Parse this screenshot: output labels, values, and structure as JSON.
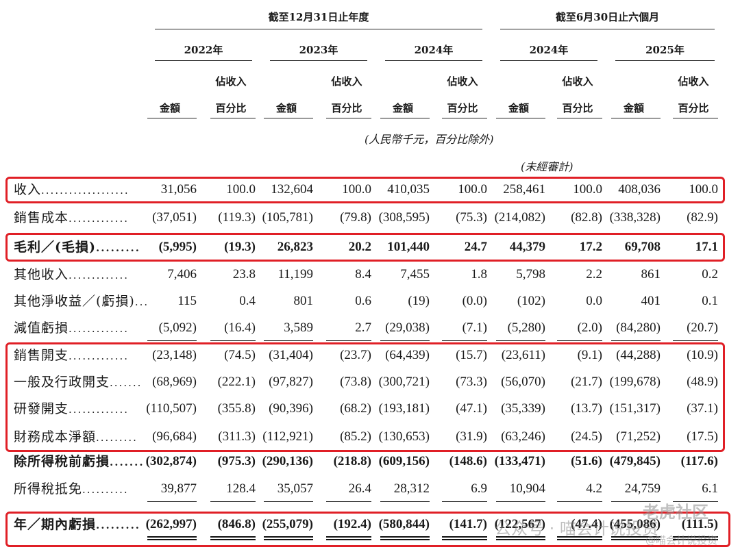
{
  "header": {
    "group1": "截至12月31日止年度",
    "group2": "截至6月30日止六個月",
    "years": [
      "2022年",
      "2023年",
      "2024年",
      "2024年",
      "2025年"
    ],
    "amount_label": "金額",
    "pct_label_1": "佔收入",
    "pct_label_2": "百分比",
    "unit_note": "(人民幣千元，百分比除外)",
    "unaudited": "(未經審計)"
  },
  "rows": [
    {
      "label": "收入",
      "leader": "...................",
      "bold": false,
      "values": [
        "31,056",
        "100.0",
        "132,604",
        "100.0",
        "410,035",
        "100.0",
        "258,461",
        "100.0",
        "408,036",
        "100.0"
      ]
    },
    {
      "label": "銷售成本",
      "leader": ".............",
      "bold": false,
      "values": [
        "(37,051)",
        "(119.3)",
        "(105,781)",
        "(79.8)",
        "(308,595)",
        "(75.3)",
        "(214,082)",
        "(82.8)",
        "(338,328)",
        "(82.9)"
      ]
    },
    {
      "label": "毛利／(毛損)",
      "leader": ".........",
      "bold": true,
      "values": [
        "(5,995)",
        "(19.3)",
        "26,823",
        "20.2",
        "101,440",
        "24.7",
        "44,379",
        "17.2",
        "69,708",
        "17.1"
      ]
    },
    {
      "label": "其他收入",
      "leader": ".............",
      "bold": false,
      "values": [
        "7,406",
        "23.8",
        "11,199",
        "8.4",
        "7,455",
        "1.8",
        "5,798",
        "2.2",
        "861",
        "0.2"
      ]
    },
    {
      "label": "其他淨收益／(虧損)",
      "leader": "...",
      "bold": false,
      "values": [
        "115",
        "0.4",
        "801",
        "0.6",
        "(19)",
        "(0.0)",
        "(102)",
        "0.0",
        "401",
        "0.1"
      ]
    },
    {
      "label": "減值虧損",
      "leader": ".............",
      "bold": false,
      "values": [
        "(5,092)",
        "(16.4)",
        "3,589",
        "2.7",
        "(29,038)",
        "(7.1)",
        "(5,280)",
        "(2.0)",
        "(84,280)",
        "(20.7)"
      ]
    },
    {
      "label": "銷售開支",
      "leader": ".............",
      "bold": false,
      "values": [
        "(23,148)",
        "(74.5)",
        "(31,404)",
        "(23.7)",
        "(64,439)",
        "(15.7)",
        "(23,611)",
        "(9.1)",
        "(44,288)",
        "(10.9)"
      ]
    },
    {
      "label": "一般及行政開支",
      "leader": ".......",
      "bold": false,
      "values": [
        "(68,969)",
        "(222.1)",
        "(97,827)",
        "(73.8)",
        "(300,721)",
        "(73.3)",
        "(56,070)",
        "(21.7)",
        "(199,678)",
        "(48.9)"
      ]
    },
    {
      "label": "研發開支",
      "leader": ".............",
      "bold": false,
      "values": [
        "(110,507)",
        "(355.8)",
        "(90,396)",
        "(68.2)",
        "(193,181)",
        "(47.1)",
        "(35,339)",
        "(13.7)",
        "(151,317)",
        "(37.1)"
      ]
    },
    {
      "label": "財務成本淨額",
      "leader": ".........",
      "bold": false,
      "values": [
        "(96,684)",
        "(311.3)",
        "(112,921)",
        "(85.2)",
        "(130,653)",
        "(31.9)",
        "(63,246)",
        "(24.5)",
        "(71,252)",
        "(17.5)"
      ]
    },
    {
      "label": "除所得稅前虧損",
      "leader": ".......",
      "bold": true,
      "values": [
        "(302,874)",
        "(975.3)",
        "(290,136)",
        "(218.8)",
        "(609,156)",
        "(148.6)",
        "(133,471)",
        "(51.6)",
        "(479,845)",
        "(117.6)"
      ]
    },
    {
      "label": "所得稅抵免",
      "leader": "..........",
      "bold": false,
      "values": [
        "39,877",
        "128.4",
        "35,057",
        "26.4",
        "28,312",
        "6.9",
        "10,904",
        "4.2",
        "24,759",
        "6.1"
      ]
    },
    {
      "label": "年／期內虧損",
      "leader": ".........",
      "bold": true,
      "values": [
        "(262,997)",
        "(846.8)",
        "(255,079)",
        "(192.4)",
        "(580,844)",
        "(141.7)",
        "(122,567)",
        "(47.4)",
        "(455,086)",
        "(111.5)"
      ]
    }
  ],
  "watermark": {
    "wm1": "公众号 · 喵会计说投资",
    "wm2": "老虎社区",
    "wm3": "@喵会计说投资"
  }
}
